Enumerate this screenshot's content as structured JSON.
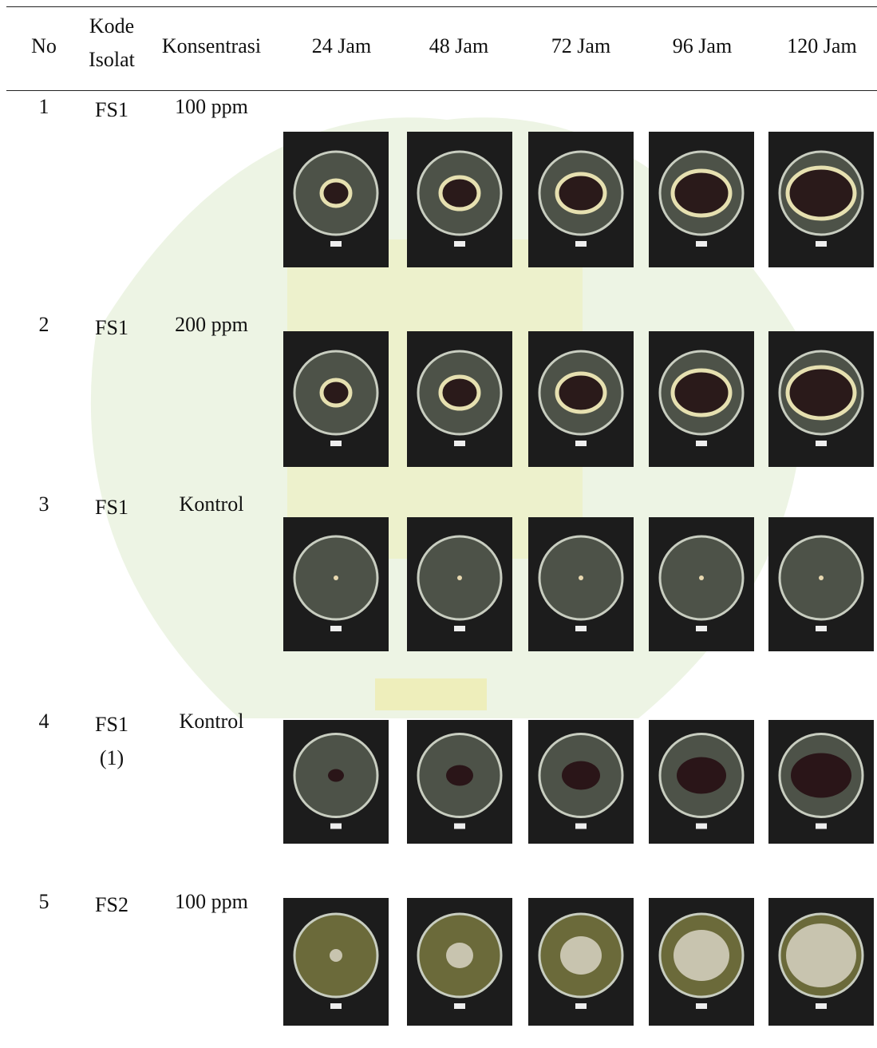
{
  "table": {
    "header": [
      "No",
      "Kode Isolat",
      "Konsentrasi",
      "24 Jam",
      "48 Jam",
      "72 Jam",
      "96 Jam",
      "120 Jam"
    ],
    "rows": [
      [
        "1",
        "FS1",
        "100 ppm"
      ],
      [
        "2",
        "FS1",
        "200 ppm"
      ],
      [
        "3",
        "FS1",
        "Kontrol"
      ],
      [
        "4",
        "FS1 (1)",
        "Kontrol"
      ],
      [
        "5",
        "FS2",
        "100 ppm"
      ]
    ]
  }
}
